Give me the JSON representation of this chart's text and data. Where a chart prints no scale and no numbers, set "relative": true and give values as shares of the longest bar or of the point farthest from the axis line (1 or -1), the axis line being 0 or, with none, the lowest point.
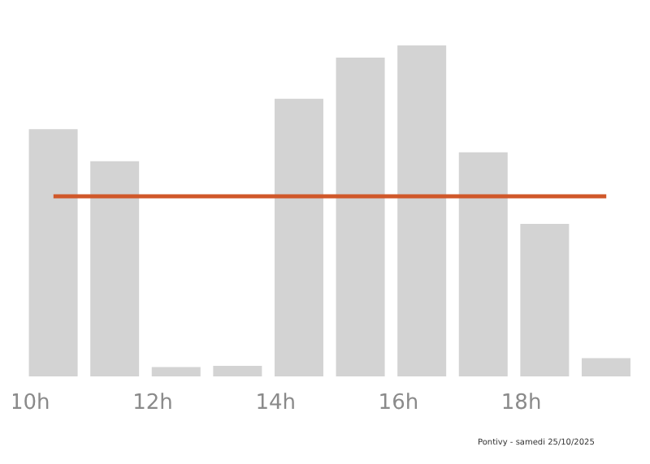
{
  "chart_data": {
    "type": "bar",
    "relative": true,
    "categories": [
      "10h",
      null,
      "12h",
      null,
      "14h",
      null,
      "16h",
      null,
      "18h",
      null
    ],
    "values": [
      0.747,
      0.65,
      0.028,
      0.032,
      0.839,
      0.963,
      1,
      0.677,
      0.461,
      0.055
    ],
    "color": "#d3d3d3",
    "ref_lines": [
      {
        "axis": "y",
        "value": 0.544,
        "color": "#d0582a"
      }
    ],
    "annotations": [
      "Pontivy - samedi 25/10/2025"
    ]
  }
}
